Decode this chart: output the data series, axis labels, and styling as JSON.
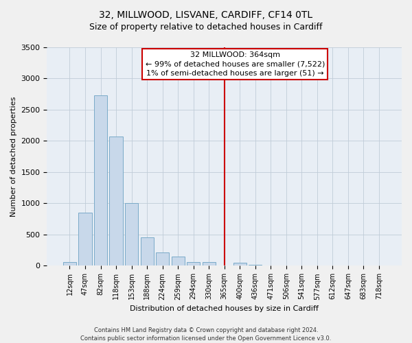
{
  "title": "32, MILLWOOD, LISVANE, CARDIFF, CF14 0TL",
  "subtitle": "Size of property relative to detached houses in Cardiff",
  "xlabel": "Distribution of detached houses by size in Cardiff",
  "ylabel": "Number of detached properties",
  "bar_color": "#c8d8ea",
  "bar_edge_color": "#7aaac8",
  "plot_bg_color": "#e8eef5",
  "fig_bg_color": "#f0f0f0",
  "categories": [
    "12sqm",
    "47sqm",
    "82sqm",
    "118sqm",
    "153sqm",
    "188sqm",
    "224sqm",
    "259sqm",
    "294sqm",
    "330sqm",
    "365sqm",
    "400sqm",
    "436sqm",
    "471sqm",
    "506sqm",
    "541sqm",
    "577sqm",
    "612sqm",
    "647sqm",
    "683sqm",
    "718sqm"
  ],
  "values": [
    55,
    850,
    2730,
    2070,
    1010,
    455,
    210,
    150,
    60,
    55,
    0,
    50,
    20,
    0,
    0,
    0,
    0,
    0,
    0,
    0,
    0
  ],
  "ylim": [
    0,
    3500
  ],
  "yticks": [
    0,
    500,
    1000,
    1500,
    2000,
    2500,
    3000,
    3500
  ],
  "red_line_index": 10,
  "annotation_title": "32 MILLWOOD: 364sqm",
  "annotation_line1": "← 99% of detached houses are smaller (7,522)",
  "annotation_line2": "1% of semi-detached houses are larger (51) →",
  "footer_line1": "Contains HM Land Registry data © Crown copyright and database right 2024.",
  "footer_line2": "Contains public sector information licensed under the Open Government Licence v3.0.",
  "grid_color": "#c0ccd8",
  "title_fontsize": 10,
  "subtitle_fontsize": 9,
  "tick_fontsize": 7,
  "ylabel_fontsize": 8,
  "xlabel_fontsize": 8,
  "annotation_fontsize": 8,
  "footer_fontsize": 6
}
